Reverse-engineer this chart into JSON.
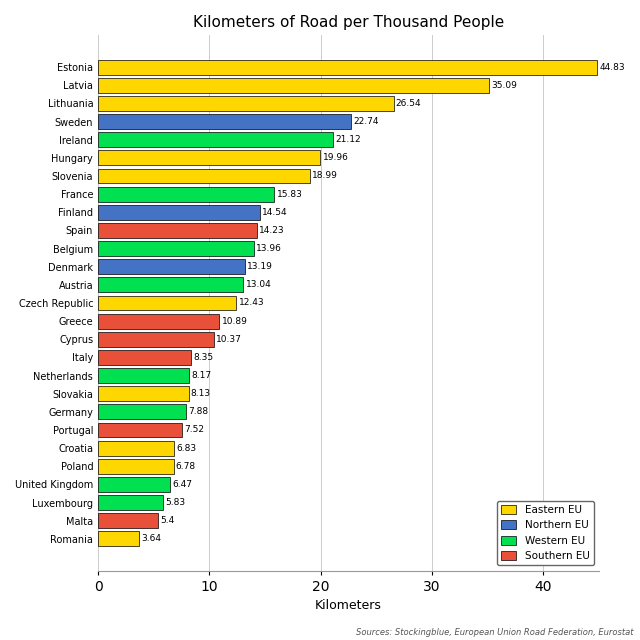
{
  "title": "Kilometers of Road per Thousand People",
  "xlabel": "Kilometers",
  "source": "Sources: Stockingblue, European Union Road Federation, Eurostat",
  "countries": [
    "Estonia",
    "Latvia",
    "Lithuania",
    "Sweden",
    "Ireland",
    "Hungary",
    "Slovenia",
    "France",
    "Finland",
    "Spain",
    "Belgium",
    "Denmark",
    "Austria",
    "Czech Republic",
    "Greece",
    "Cyprus",
    "Italy",
    "Netherlands",
    "Slovakia",
    "Germany",
    "Portugal",
    "Croatia",
    "Poland",
    "United Kingdom",
    "Luxembourg",
    "Malta",
    "Romania"
  ],
  "values": [
    44.83,
    35.09,
    26.54,
    22.74,
    21.12,
    19.96,
    18.99,
    15.83,
    14.54,
    14.23,
    13.96,
    13.19,
    13.04,
    12.43,
    10.89,
    10.37,
    8.35,
    8.17,
    8.13,
    7.88,
    7.52,
    6.83,
    6.78,
    6.47,
    5.83,
    5.4,
    3.64
  ],
  "regions": [
    "Eastern EU",
    "Eastern EU",
    "Eastern EU",
    "Northern EU",
    "Western EU",
    "Eastern EU",
    "Eastern EU",
    "Western EU",
    "Northern EU",
    "Southern EU",
    "Western EU",
    "Northern EU",
    "Western EU",
    "Eastern EU",
    "Southern EU",
    "Southern EU",
    "Southern EU",
    "Western EU",
    "Eastern EU",
    "Western EU",
    "Southern EU",
    "Eastern EU",
    "Eastern EU",
    "Western EU",
    "Western EU",
    "Southern EU",
    "Eastern EU"
  ],
  "region_colors": {
    "Eastern EU": "#FFD700",
    "Northern EU": "#4472C4",
    "Western EU": "#00E050",
    "Southern EU": "#E8503A"
  },
  "legend_order": [
    "Eastern EU",
    "Northern EU",
    "Western EU",
    "Southern EU"
  ],
  "background_color": "#FFFFFF",
  "grid_color": "#CCCCCC",
  "bar_edge_color": "#000000",
  "figsize": [
    6.4,
    6.4
  ],
  "dpi": 100,
  "xlim": [
    0,
    45
  ],
  "xticks": [
    0,
    10,
    20,
    30,
    40
  ],
  "value_label_fontsize": 6.5,
  "ytick_fontsize": 7,
  "xlabel_fontsize": 9,
  "title_fontsize": 11,
  "legend_fontsize": 7.5,
  "source_fontsize": 6,
  "bar_height": 0.82
}
